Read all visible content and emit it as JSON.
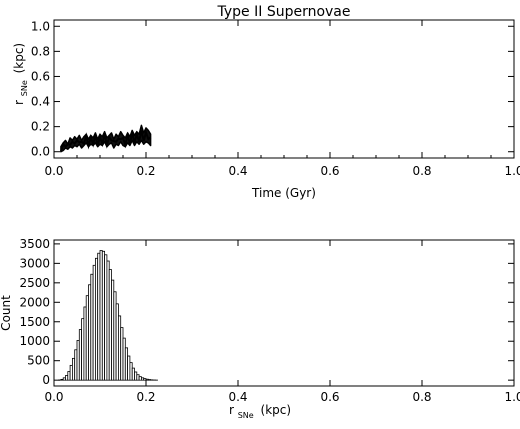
{
  "chart_data": [
    {
      "type": "line",
      "title": "Type II Supernovae",
      "xlabel": "Time (Gyr)",
      "ylabel": "r",
      "ylabel_sub": "SNe",
      "ylabel_unit": "(kpc)",
      "xlim": [
        0.0,
        1.0
      ],
      "ylim": [
        -0.05,
        1.05
      ],
      "x_ticks": [
        "0.0",
        "0.2",
        "0.4",
        "0.6",
        "0.8",
        "1.0"
      ],
      "y_ticks": [
        "0.0",
        "0.2",
        "0.4",
        "0.6",
        "0.8",
        "1.0"
      ],
      "series": [
        {
          "x": [
            0.015,
            0.02,
            0.025,
            0.03,
            0.035,
            0.04,
            0.045,
            0.05,
            0.055,
            0.06,
            0.065,
            0.07,
            0.075,
            0.08,
            0.085,
            0.09,
            0.095,
            0.1,
            0.105,
            0.11,
            0.115,
            0.12,
            0.125,
            0.13,
            0.135,
            0.14,
            0.145,
            0.15,
            0.155,
            0.16,
            0.165,
            0.17,
            0.175,
            0.18,
            0.185,
            0.19,
            0.195,
            0.2,
            0.205,
            0.21
          ],
          "y_upper": [
            0.04,
            0.07,
            0.09,
            0.06,
            0.11,
            0.09,
            0.12,
            0.1,
            0.13,
            0.09,
            0.12,
            0.14,
            0.1,
            0.13,
            0.11,
            0.15,
            0.1,
            0.14,
            0.12,
            0.16,
            0.11,
            0.13,
            0.15,
            0.1,
            0.14,
            0.12,
            0.16,
            0.13,
            0.11,
            0.15,
            0.12,
            0.17,
            0.13,
            0.16,
            0.14,
            0.21,
            0.15,
            0.19,
            0.17,
            0.14
          ],
          "y_lower": [
            0.0,
            0.01,
            0.03,
            0.02,
            0.04,
            0.03,
            0.05,
            0.04,
            0.06,
            0.03,
            0.05,
            0.07,
            0.04,
            0.06,
            0.05,
            0.07,
            0.04,
            0.06,
            0.05,
            0.08,
            0.04,
            0.06,
            0.07,
            0.03,
            0.06,
            0.05,
            0.08,
            0.05,
            0.04,
            0.07,
            0.05,
            0.09,
            0.05,
            0.08,
            0.06,
            0.09,
            0.06,
            0.08,
            0.07,
            0.05
          ]
        }
      ]
    },
    {
      "type": "bar",
      "xlabel": "r",
      "xlabel_sub": "SNe",
      "xlabel_unit": "(kpc)",
      "ylabel": "Count",
      "xlim": [
        0.0,
        1.0
      ],
      "ylim": [
        -150,
        3600
      ],
      "x_ticks": [
        "0.0",
        "0.2",
        "0.4",
        "0.6",
        "0.8",
        "1.0"
      ],
      "y_ticks": [
        "0",
        "500",
        "1000",
        "1500",
        "2000",
        "2500",
        "3000",
        "3500"
      ],
      "bin_width": 0.005,
      "bin_start": 0.0,
      "values": [
        0,
        0,
        5,
        20,
        60,
        120,
        220,
        380,
        560,
        780,
        1020,
        1300,
        1580,
        1880,
        2170,
        2450,
        2720,
        2950,
        3130,
        3260,
        3330,
        3310,
        3220,
        3060,
        2840,
        2570,
        2270,
        1960,
        1650,
        1350,
        1080,
        830,
        620,
        450,
        310,
        210,
        140,
        90,
        60,
        40,
        25,
        15,
        8,
        4,
        2
      ]
    }
  ]
}
